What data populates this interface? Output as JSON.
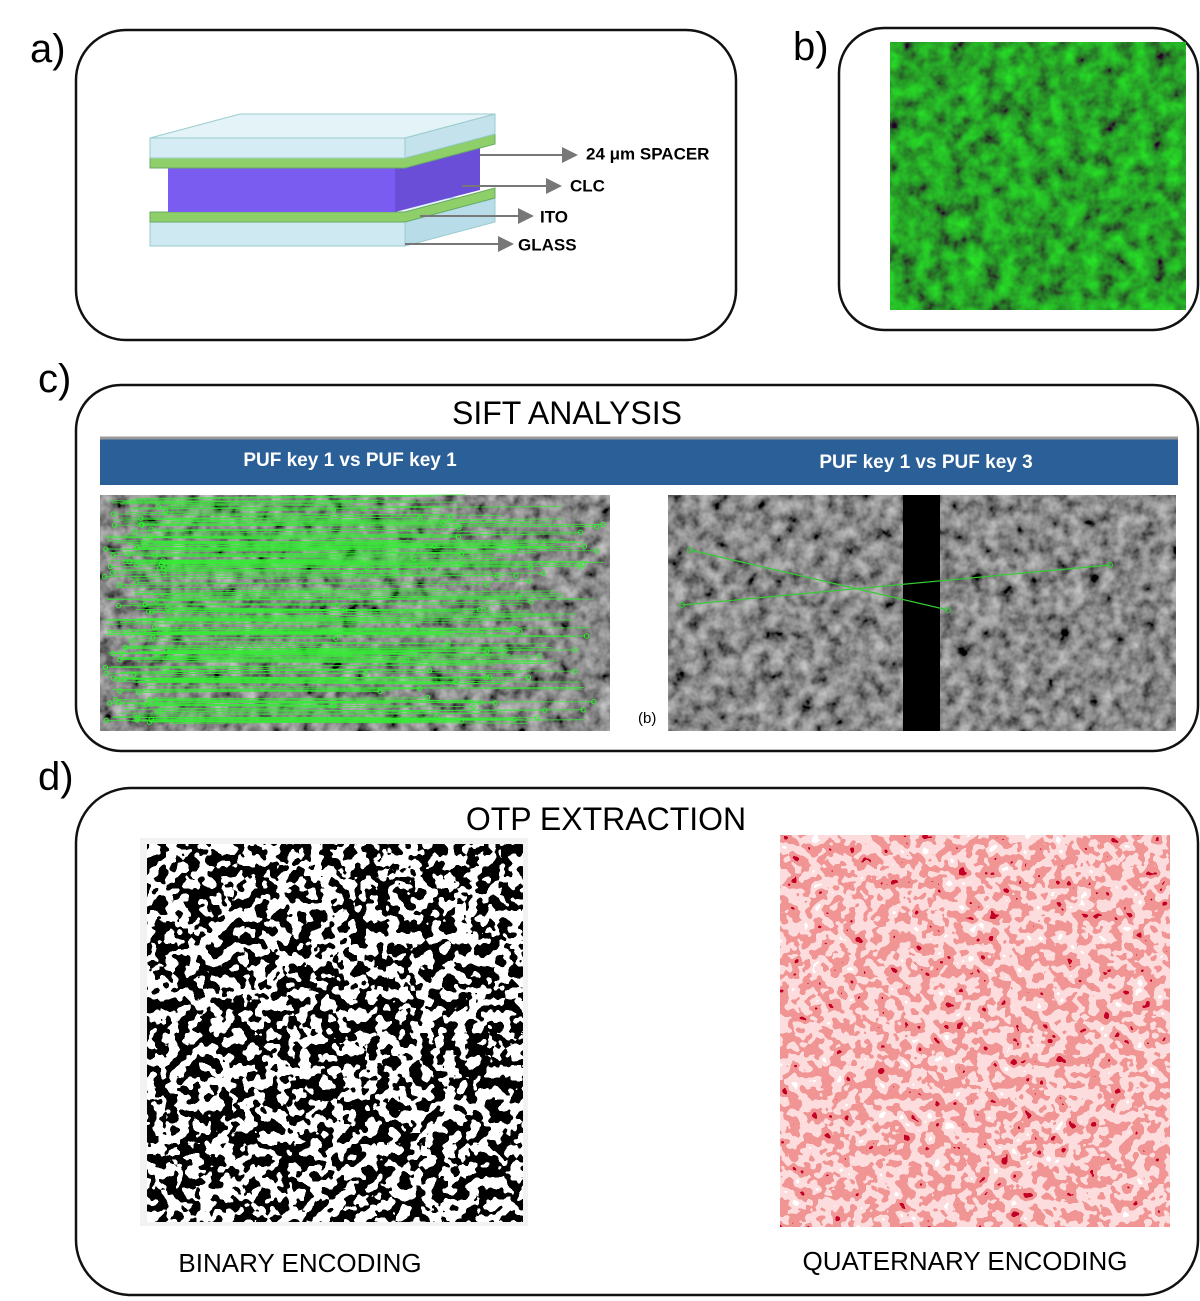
{
  "panels": {
    "a": {
      "label": "a)",
      "layers": [
        "24 μm SPACER",
        "CLC",
        "ITO",
        "GLASS"
      ]
    },
    "b": {
      "label": "b)"
    },
    "c": {
      "label": "c)",
      "title": "SIFT ANALYSIS",
      "comparisons": [
        "PUF key 1 vs PUF key 1",
        "PUF key 1 vs PUF key 3"
      ],
      "image_tag": "(b)"
    },
    "d": {
      "label": "d)",
      "title": "OTP EXTRACTION",
      "captions": [
        "BINARY ENCODING",
        "QUATERNARY ENCODING"
      ]
    }
  }
}
